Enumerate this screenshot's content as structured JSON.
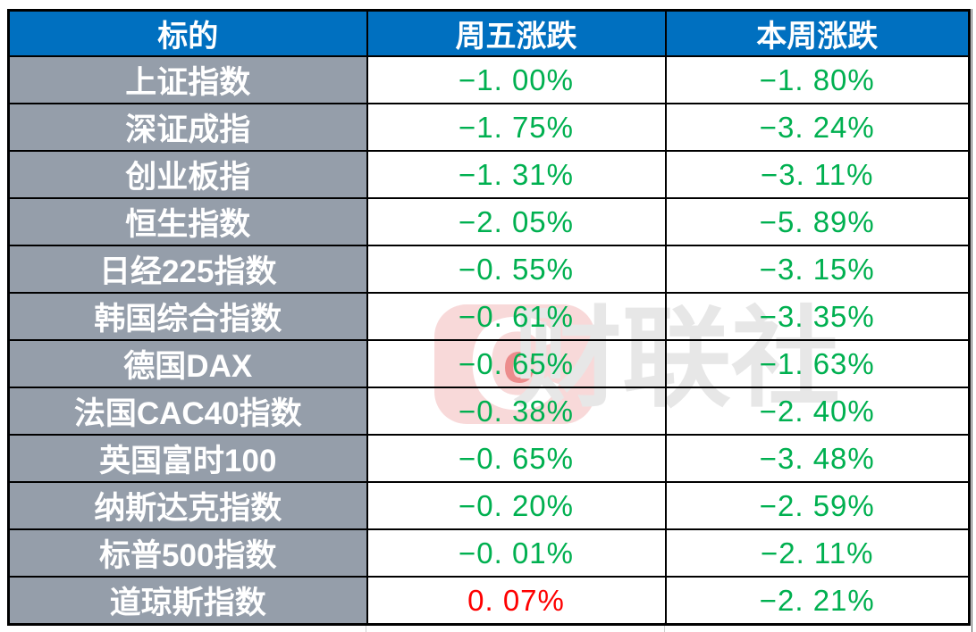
{
  "table": {
    "columns": [
      {
        "label": "标的"
      },
      {
        "label": "周五涨跌"
      },
      {
        "label": "本周涨跌"
      }
    ],
    "rows": [
      {
        "name": "上证指数",
        "friday": "−1. 00%",
        "friday_class": "pct green",
        "week": "−1. 80%",
        "week_class": "pct green"
      },
      {
        "name": "深证成指",
        "friday": "−1. 75%",
        "friday_class": "pct green",
        "week": "−3. 24%",
        "week_class": "pct green"
      },
      {
        "name": "创业板指",
        "friday": "−1. 31%",
        "friday_class": "pct green",
        "week": "−3. 11%",
        "week_class": "pct green"
      },
      {
        "name": "恒生指数",
        "friday": "−2. 05%",
        "friday_class": "pct green",
        "week": "−5. 89%",
        "week_class": "pct green"
      },
      {
        "name": "日经225指数",
        "friday": "−0. 55%",
        "friday_class": "pct green",
        "week": "−3. 15%",
        "week_class": "pct green"
      },
      {
        "name": "韩国综合指数",
        "friday": "−0. 61%",
        "friday_class": "pct green",
        "week": "−3. 35%",
        "week_class": "pct green"
      },
      {
        "name": "德国DAX",
        "friday": "−0. 65%",
        "friday_class": "pct green",
        "week": "−1. 63%",
        "week_class": "pct green"
      },
      {
        "name": "法国CAC40指数",
        "friday": "−0. 38%",
        "friday_class": "pct green",
        "week": "−2. 40%",
        "week_class": "pct green"
      },
      {
        "name": "英国富时100",
        "friday": "−0. 65%",
        "friday_class": "pct green",
        "week": "−3. 48%",
        "week_class": "pct green"
      },
      {
        "name": "纳斯达克指数",
        "friday": "−0. 20%",
        "friday_class": "pct green",
        "week": "−2. 59%",
        "week_class": "pct green"
      },
      {
        "name": "标普500指数",
        "friday": "−0. 01%",
        "friday_class": "pct green",
        "week": "−2. 11%",
        "week_class": "pct green"
      },
      {
        "name": "道琼斯指数",
        "friday": "0. 07%",
        "friday_class": "pct red",
        "week": "−2. 21%",
        "week_class": "pct green"
      }
    ]
  },
  "chart_data": {
    "type": "table",
    "title": "",
    "columns": [
      "标的",
      "周五涨跌",
      "本周涨跌"
    ],
    "rows": [
      [
        "上证指数",
        "-1.00%",
        "-1.80%"
      ],
      [
        "深证成指",
        "-1.75%",
        "-3.24%"
      ],
      [
        "创业板指",
        "-1.31%",
        "-3.11%"
      ],
      [
        "恒生指数",
        "-2.05%",
        "-5.89%"
      ],
      [
        "日经225指数",
        "-0.55%",
        "-3.15%"
      ],
      [
        "韩国综合指数",
        "-0.61%",
        "-3.35%"
      ],
      [
        "德国DAX",
        "-0.65%",
        "-1.63%"
      ],
      [
        "法国CAC40指数",
        "-0.38%",
        "-2.40%"
      ],
      [
        "英国富时100",
        "-0.65%",
        "-3.48%"
      ],
      [
        "纳斯达克指数",
        "-0.20%",
        "-2.59%"
      ],
      [
        "标普500指数",
        "-0.01%",
        "-2.11%"
      ],
      [
        "道琼斯指数",
        "0.07%",
        "-2.21%"
      ]
    ]
  },
  "watermark": {
    "logo_letter": "C",
    "logo_inner_letter": "c",
    "text": "财联社"
  },
  "colors": {
    "header_bg": "#0070C0",
    "label_bg": "#959EAA",
    "down_green": "#00B050",
    "up_red": "#FE0000",
    "border": "#000000",
    "watermark_pink": "#F8D9D9",
    "watermark_red": "#EC8C8C",
    "watermark_gray": "#E7E7E7"
  }
}
